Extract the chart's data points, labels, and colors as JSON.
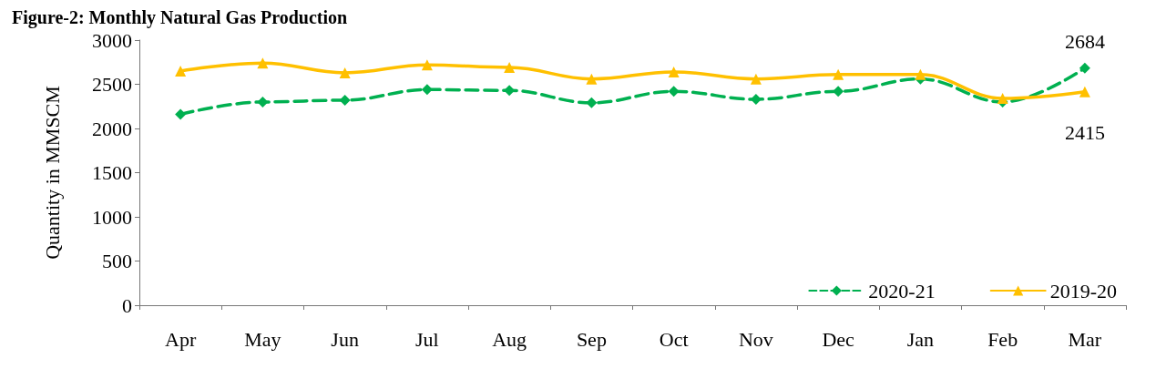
{
  "chart_data": {
    "type": "line",
    "title": "Figure-2: Monthly Natural Gas Production",
    "ylabel": "Quantity in MMSCM",
    "categories": [
      "Apr",
      "May",
      "Jun",
      "Jul",
      "Aug",
      "Sep",
      "Oct",
      "Nov",
      "Dec",
      "Jan",
      "Feb",
      "Mar"
    ],
    "series": [
      {
        "name": "2020-21",
        "color": "#00b050",
        "line_style": "dashed",
        "marker": "diamond",
        "values": [
          2160,
          2300,
          2320,
          2440,
          2430,
          2290,
          2420,
          2330,
          2420,
          2560,
          2300,
          2684
        ],
        "value_labels": [
          null,
          null,
          null,
          null,
          null,
          null,
          null,
          null,
          null,
          null,
          null,
          "2684"
        ]
      },
      {
        "name": "2019-20",
        "color": "#ffc000",
        "line_style": "solid",
        "marker": "triangle",
        "values": [
          2650,
          2740,
          2630,
          2720,
          2690,
          2560,
          2640,
          2560,
          2610,
          2610,
          2340,
          2415
        ],
        "value_labels": [
          null,
          null,
          null,
          null,
          null,
          null,
          null,
          null,
          null,
          null,
          null,
          "2415"
        ]
      }
    ],
    "ylim": [
      0,
      3000
    ],
    "yticks": [
      0,
      500,
      1000,
      1500,
      2000,
      2500,
      3000
    ],
    "grid": false,
    "legend": "bottom right"
  }
}
